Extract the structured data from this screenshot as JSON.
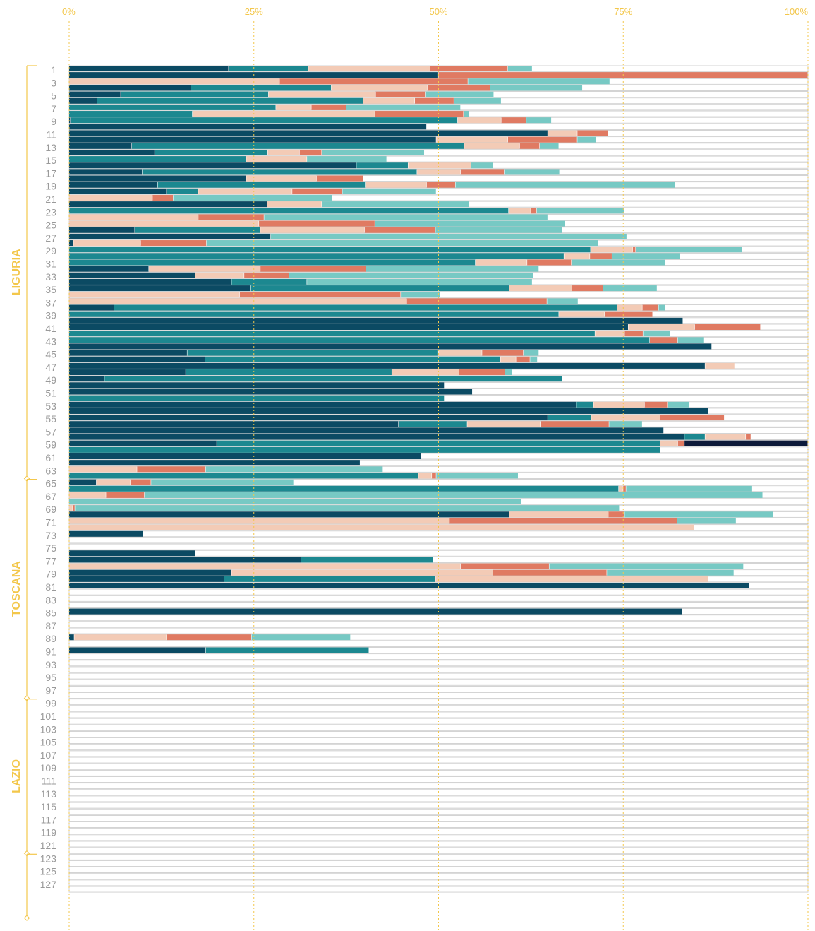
{
  "chart_data": {
    "type": "bar",
    "orientation": "horizontal",
    "stacked": true,
    "xlim": [
      0,
      100
    ],
    "x_ticks": [
      "0%",
      "25%",
      "50%",
      "75%",
      "100%"
    ],
    "grid": "vertical-dashed",
    "category_colors": [
      "#0b4a63",
      "#1c8890",
      "#f3cbb6",
      "#e07a62",
      "#77c9c4",
      "#0d1a3a"
    ],
    "region_colors": [
      "#f3c74b",
      "#f3c74b",
      "#f3c74b",
      "#f3c74b"
    ],
    "regions": [
      {
        "name": "LIGURIA",
        "first_row": 1,
        "last_row": 64
      },
      {
        "name": "TOSCANA",
        "first_row": 65,
        "last_row": 98
      },
      {
        "name": "LAZIO",
        "first_row": 99,
        "last_row": 122
      },
      {
        "name": "",
        "first_row": 123,
        "last_row": 132
      }
    ],
    "row_label_step": 2,
    "rows": [
      [
        21.6,
        10.8,
        16.5,
        10.5,
        3.3,
        0
      ],
      [
        50,
        0,
        0,
        50,
        0,
        0
      ],
      [
        0,
        0,
        28.5,
        25.5,
        19.2,
        0
      ],
      [
        16.5,
        19,
        13,
        8.5,
        12.5,
        0
      ],
      [
        7,
        20,
        14.5,
        6.8,
        9.2,
        0
      ],
      [
        3.8,
        36,
        7,
        5.3,
        6.4,
        0
      ],
      [
        0,
        28,
        4.8,
        4.7,
        15.5,
        0
      ],
      [
        0,
        16.7,
        24.7,
        12,
        0.8,
        0
      ],
      [
        0.2,
        52.4,
        5.9,
        3.4,
        3.4,
        0
      ],
      [
        48.4,
        0,
        0,
        0,
        0,
        0
      ],
      [
        64.8,
        0,
        4,
        4.2,
        0,
        0
      ],
      [
        49.7,
        0,
        9.7,
        9.4,
        2.6,
        0
      ],
      [
        8.5,
        45,
        7.5,
        2.7,
        2.6,
        0
      ],
      [
        11.6,
        15.3,
        4.3,
        3,
        13.9,
        0
      ],
      [
        0,
        24,
        8.2,
        0,
        10.8,
        0
      ],
      [
        38.9,
        7,
        8.5,
        0,
        3,
        0
      ],
      [
        9.9,
        37.2,
        5.9,
        5.9,
        7.5,
        0
      ],
      [
        24,
        0,
        9.5,
        6.3,
        0,
        0
      ],
      [
        12,
        28.1,
        8.3,
        3.9,
        29.8,
        0
      ],
      [
        13.2,
        4.3,
        12.7,
        6.8,
        12.7,
        0
      ],
      [
        0,
        0,
        11.3,
        2.8,
        21.5,
        0
      ],
      [
        26.8,
        0,
        7.4,
        0,
        20,
        0
      ],
      [
        0,
        59.5,
        3,
        0.8,
        11.9,
        0
      ],
      [
        0,
        0,
        17.5,
        8.9,
        38.4,
        0
      ],
      [
        0,
        0,
        25.7,
        15.7,
        25.8,
        0
      ],
      [
        8.9,
        17,
        14.1,
        9.6,
        17.2,
        0
      ],
      [
        27.3,
        0,
        0,
        0,
        48.2,
        0
      ],
      [
        0.6,
        0,
        9.1,
        8.9,
        53,
        0
      ],
      [
        0,
        70.6,
        5.7,
        0.4,
        14.4,
        0
      ],
      [
        0,
        67,
        3.5,
        3,
        9.2,
        0
      ],
      [
        0,
        55,
        7,
        6,
        12.7,
        0
      ],
      [
        10.8,
        0,
        15.1,
        14.3,
        23.4,
        0
      ],
      [
        17.1,
        0,
        6.6,
        6.1,
        33.1,
        0
      ],
      [
        22,
        10.2,
        0,
        0,
        30.5,
        0
      ],
      [
        24.6,
        35,
        8.5,
        4.2,
        7.3,
        0
      ],
      [
        0,
        0,
        23.1,
        21.8,
        5.3,
        0
      ],
      [
        0,
        0,
        45.7,
        19,
        4.2,
        0
      ],
      [
        6.1,
        68.1,
        3.4,
        2.2,
        0.9,
        0
      ],
      [
        0,
        66.3,
        6.2,
        6.5,
        0,
        0
      ],
      [
        83.1,
        0,
        0,
        0,
        0,
        0
      ],
      [
        75.7,
        0,
        9,
        8.9,
        0,
        0
      ],
      [
        0,
        71.2,
        4,
        2.5,
        3.7,
        0
      ],
      [
        0,
        78.6,
        0,
        3.8,
        3.5,
        0
      ],
      [
        87,
        0,
        0,
        0,
        0,
        0
      ],
      [
        16,
        34,
        5.9,
        5.6,
        2.1,
        0
      ],
      [
        18.4,
        40,
        2.1,
        1.9,
        1,
        0
      ],
      [
        86.1,
        0,
        4,
        0,
        0,
        0
      ],
      [
        15.8,
        27.9,
        9.1,
        6.2,
        1,
        0
      ],
      [
        4.8,
        62,
        0,
        0,
        0,
        0
      ],
      [
        50.8,
        0,
        0,
        0,
        0,
        0
      ],
      [
        54.6,
        0,
        0,
        0,
        0,
        0
      ],
      [
        0,
        50.8,
        0,
        0,
        0,
        0
      ],
      [
        68.7,
        2.3,
        6.9,
        3.1,
        3,
        0
      ],
      [
        86.5,
        0,
        0,
        0,
        0,
        0
      ],
      [
        64.8,
        5.9,
        9.3,
        8.7,
        0,
        0
      ],
      [
        44.6,
        9.3,
        9.9,
        9.3,
        4.5,
        0
      ],
      [
        80.5,
        0,
        0,
        0,
        0,
        0
      ],
      [
        83.3,
        2.8,
        5.5,
        0.7,
        0,
        0
      ],
      [
        20,
        60,
        2.4,
        0.9,
        0,
        16.7
      ],
      [
        0,
        80,
        0,
        0,
        0,
        0
      ],
      [
        47.7,
        0,
        0,
        0,
        0,
        0
      ],
      [
        39.4,
        0,
        0,
        0,
        0,
        0
      ],
      [
        0,
        0,
        9.2,
        9.3,
        24,
        0
      ],
      [
        0,
        47.3,
        1.8,
        0.6,
        11.1,
        0
      ],
      [
        3.7,
        0,
        4.6,
        2.8,
        19.3,
        0
      ],
      [
        0,
        74.4,
        0.6,
        0.4,
        17.1,
        0
      ],
      [
        0,
        0,
        5,
        5.2,
        83.7,
        0
      ],
      [
        0,
        0,
        0,
        0,
        61.2,
        0
      ],
      [
        0,
        0,
        0.5,
        0.3,
        73.7,
        0
      ],
      [
        59.6,
        0,
        13.4,
        2.2,
        20.1,
        0
      ],
      [
        0,
        0,
        51.5,
        30.8,
        8,
        0
      ],
      [
        0,
        0,
        84.6,
        0,
        0,
        0
      ],
      [
        10,
        0,
        0,
        0,
        0,
        0
      ],
      [
        0,
        0,
        0,
        0,
        0,
        0
      ],
      [
        0,
        0,
        0,
        0,
        0,
        0
      ],
      [
        17.1,
        0,
        0,
        0,
        0,
        0
      ],
      [
        31.4,
        17.9,
        0,
        0,
        0,
        0
      ],
      [
        0,
        0,
        53,
        12,
        26.3,
        0
      ],
      [
        22,
        0,
        35.4,
        15.4,
        17.2,
        0
      ],
      [
        21,
        28.6,
        36.9,
        0,
        0,
        0
      ],
      [
        92.1,
        0,
        0,
        0,
        0,
        0
      ],
      [
        0,
        0,
        0,
        0,
        0,
        0
      ],
      [
        0,
        0,
        0,
        0,
        0,
        0
      ],
      [
        0,
        0,
        0,
        0,
        0,
        0
      ],
      [
        83,
        0,
        0,
        0,
        0,
        0
      ],
      [
        0,
        0,
        0,
        0,
        0,
        0
      ],
      [
        0,
        0,
        0,
        0,
        0,
        0
      ],
      [
        0,
        0,
        0,
        0,
        0,
        0
      ],
      [
        0.7,
        0,
        12.5,
        11.5,
        13.4,
        0
      ],
      [
        0,
        0,
        0,
        0,
        0,
        0
      ],
      [
        18.5,
        22.1,
        0,
        0,
        0,
        0
      ],
      [
        0,
        0,
        0,
        0,
        0,
        0
      ],
      [
        0,
        0,
        0,
        0,
        0,
        0
      ],
      [
        0,
        0,
        0,
        0,
        0,
        0
      ],
      [
        0,
        0,
        0,
        0,
        0,
        0
      ],
      [
        0,
        0,
        0,
        0,
        0,
        0
      ],
      [
        0,
        0,
        0,
        0,
        0,
        0
      ],
      [
        0,
        0,
        0,
        0,
        0,
        0
      ],
      [
        0,
        0,
        0,
        0,
        0,
        0
      ],
      [
        0,
        0,
        0,
        0,
        0,
        0
      ],
      [
        0,
        0,
        0,
        0,
        0,
        0
      ],
      [
        0,
        0,
        0,
        0,
        0,
        0
      ],
      [
        0,
        0,
        0,
        0,
        0,
        0
      ],
      [
        0,
        0,
        0,
        0,
        0,
        0
      ],
      [
        0,
        0,
        0,
        0,
        0,
        0
      ],
      [
        0,
        0,
        0,
        0,
        0,
        0
      ],
      [
        0,
        0,
        0,
        0,
        0,
        0
      ],
      [
        0,
        0,
        0,
        0,
        0,
        0
      ],
      [
        0,
        0,
        0,
        0,
        0,
        0
      ],
      [
        0,
        0,
        0,
        0,
        0,
        0
      ],
      [
        0,
        0,
        0,
        0,
        0,
        0
      ],
      [
        0,
        0,
        0,
        0,
        0,
        0
      ],
      [
        0,
        0,
        0,
        0,
        0,
        0
      ],
      [
        0,
        0,
        0,
        0,
        0,
        0
      ],
      [
        0,
        0,
        0,
        0,
        0,
        0
      ],
      [
        0,
        0,
        0,
        0,
        0,
        0
      ],
      [
        0,
        0,
        0,
        0,
        0,
        0
      ],
      [
        0,
        0,
        0,
        0,
        0,
        0
      ],
      [
        0,
        0,
        0,
        0,
        0,
        0
      ],
      [
        0,
        0,
        0,
        0,
        0,
        0
      ],
      [
        0,
        0,
        0,
        0,
        0,
        0
      ],
      [
        0,
        0,
        0,
        0,
        0,
        0
      ],
      [
        0,
        0,
        0,
        0,
        0,
        0
      ],
      [
        0,
        0,
        0,
        0,
        0,
        0
      ],
      [
        0,
        0,
        0,
        0,
        0,
        0
      ],
      [
        0,
        0,
        0,
        0,
        0,
        0
      ],
      [
        0,
        0,
        0,
        0,
        0,
        0
      ],
      [
        0,
        0,
        0,
        0,
        0,
        0
      ]
    ]
  }
}
